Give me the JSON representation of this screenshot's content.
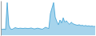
{
  "chart_data": {
    "type": "area",
    "values": [
      180,
      160,
      170,
      155,
      900,
      280,
      175,
      160,
      185,
      210,
      195,
      185,
      195,
      190,
      185,
      195,
      190,
      185,
      190,
      200,
      185,
      175,
      185,
      195,
      185,
      175,
      165,
      195,
      220,
      200,
      185,
      600,
      750,
      900,
      500,
      380,
      290,
      420,
      340,
      480,
      360,
      400,
      340,
      300,
      360,
      320,
      300,
      285,
      275,
      290,
      265,
      275,
      255,
      270,
      250,
      260,
      245,
      255,
      240,
      245
    ],
    "color": "#3a9fd4",
    "ylim": [
      0,
      950
    ],
    "tick_labels": false
  }
}
